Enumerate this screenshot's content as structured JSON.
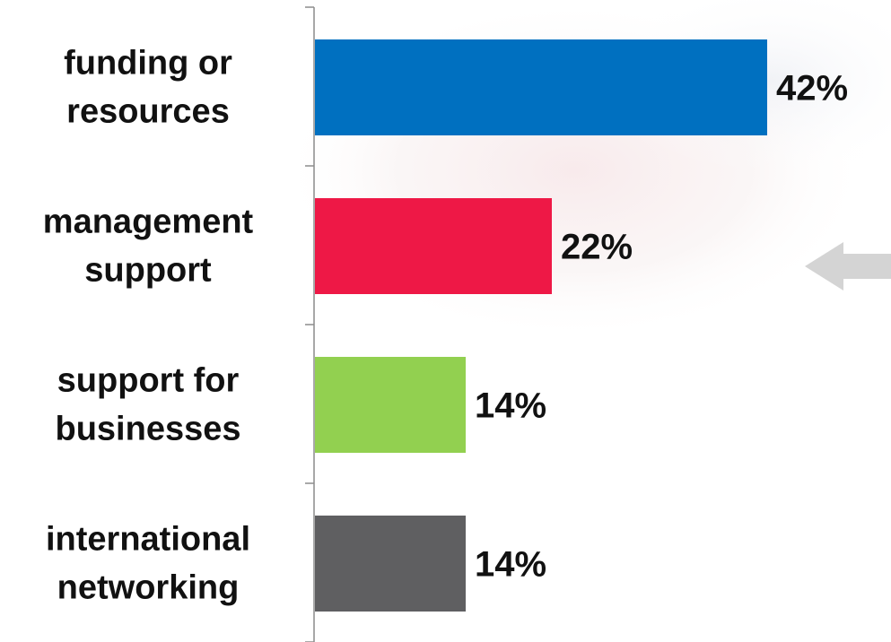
{
  "chart_data": {
    "type": "bar",
    "orientation": "horizontal",
    "categories": [
      [
        "funding or",
        "resources"
      ],
      [
        "management",
        "support"
      ],
      [
        "support for",
        "businesses"
      ],
      [
        "international",
        "networking"
      ]
    ],
    "values": [
      42,
      22,
      14,
      14
    ],
    "value_labels": [
      "42%",
      "22%",
      "14%",
      "14%"
    ],
    "colors": [
      "#0070C0",
      "#EE1846",
      "#92D050",
      "#5F5F61"
    ],
    "xlim": [
      0,
      45
    ],
    "title": "",
    "xlabel": "",
    "ylabel": "",
    "grid": false,
    "legend": "none"
  },
  "decorations": {
    "arrow_color": "#D4D4D4",
    "arrow_direction": "left",
    "arrow_icon": "arrow-left-icon"
  }
}
